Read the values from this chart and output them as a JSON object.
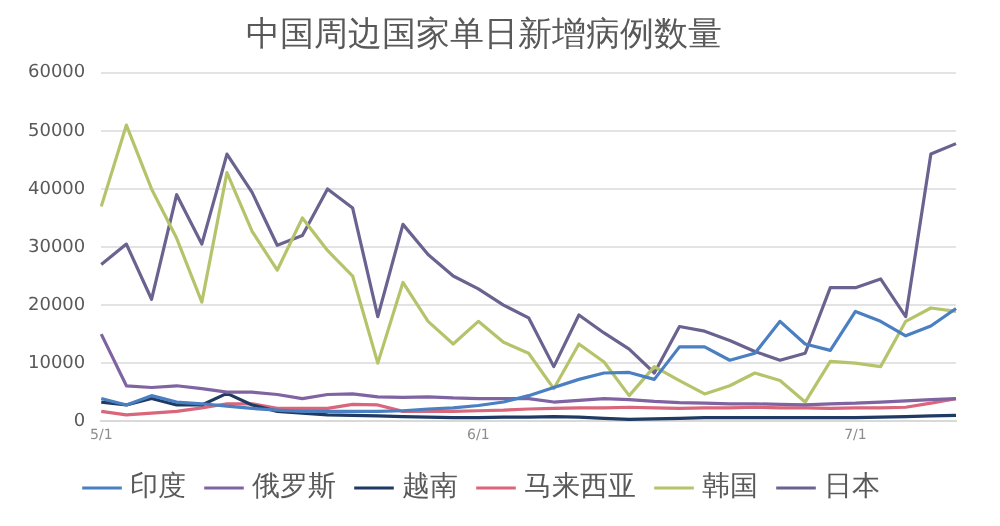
{
  "chart_data": {
    "type": "line",
    "title": "中国周边国家单日新增病例数量",
    "categories": [
      "5/1",
      null,
      null,
      null,
      null,
      null,
      null,
      null,
      null,
      null,
      null,
      null,
      null,
      null,
      null,
      "6/1",
      null,
      null,
      null,
      null,
      null,
      null,
      null,
      null,
      null,
      null,
      null,
      null,
      null,
      null,
      "7/1",
      null,
      null,
      null,
      null
    ],
    "ylim": [
      0,
      60000
    ],
    "yticks": [
      0,
      10000,
      20000,
      30000,
      40000,
      50000,
      60000
    ],
    "grid": "y",
    "legend": "bottom",
    "series": [
      {
        "name": "印度",
        "color": "#4a7fc1",
        "values": [
          3900,
          2800,
          4400,
          3300,
          3000,
          2600,
          2200,
          1900,
          1700,
          1700,
          1700,
          1700,
          1800,
          2100,
          2300,
          2700,
          3300,
          4400,
          5800,
          7200,
          8300,
          8400,
          7200,
          12800,
          12800,
          10500,
          11700,
          17200,
          13300,
          12200,
          18900,
          17200,
          14700,
          16400,
          19400
        ]
      },
      {
        "name": "俄罗斯",
        "color": "#8064a2",
        "values": [
          15000,
          6100,
          5800,
          6100,
          5600,
          5000,
          5000,
          4600,
          3900,
          4600,
          4700,
          4200,
          4100,
          4200,
          4000,
          3900,
          3900,
          3900,
          3300,
          3600,
          3900,
          3700,
          3400,
          3200,
          3100,
          3000,
          3000,
          2900,
          2800,
          3000,
          3100,
          3300,
          3500,
          3700,
          3900
        ]
      },
      {
        "name": "越南",
        "color": "#1f3b63",
        "values": [
          3300,
          2800,
          3900,
          2800,
          2800,
          4800,
          2800,
          1700,
          1400,
          1100,
          1000,
          900,
          800,
          700,
          600,
          600,
          700,
          700,
          800,
          700,
          500,
          300,
          400,
          500,
          600,
          600,
          600,
          600,
          600,
          600,
          600,
          700,
          800,
          900,
          1000
        ]
      },
      {
        "name": "马来西亚",
        "color": "#d9667a",
        "values": [
          1700,
          1100,
          1400,
          1700,
          2300,
          3000,
          3000,
          2200,
          2200,
          2200,
          2900,
          2800,
          1700,
          1700,
          1700,
          1800,
          1900,
          2100,
          2200,
          2300,
          2300,
          2400,
          2300,
          2200,
          2300,
          2300,
          2400,
          2300,
          2300,
          2200,
          2300,
          2300,
          2400,
          3100,
          3900
        ]
      },
      {
        "name": "韩国",
        "color": "#b5c46a",
        "values": [
          37000,
          51000,
          40000,
          31500,
          20500,
          42800,
          32700,
          26000,
          35000,
          29400,
          25000,
          10000,
          23900,
          17200,
          13300,
          17200,
          13600,
          11700,
          5600,
          13300,
          10200,
          4400,
          9400,
          7000,
          4700,
          6100,
          8300,
          7000,
          3300,
          10300,
          10000,
          9400,
          17200,
          19500,
          18900
        ]
      },
      {
        "name": "日本",
        "color": "#6a6390",
        "values": [
          27000,
          30500,
          21000,
          39000,
          30500,
          46000,
          39400,
          30300,
          32000,
          40000,
          36700,
          18000,
          33900,
          28700,
          25000,
          22800,
          20000,
          17800,
          9400,
          18300,
          15200,
          12400,
          8300,
          16300,
          15500,
          13900,
          12000,
          10500,
          11700,
          23000,
          23000,
          24500,
          18000,
          46000,
          47800
        ]
      }
    ]
  }
}
